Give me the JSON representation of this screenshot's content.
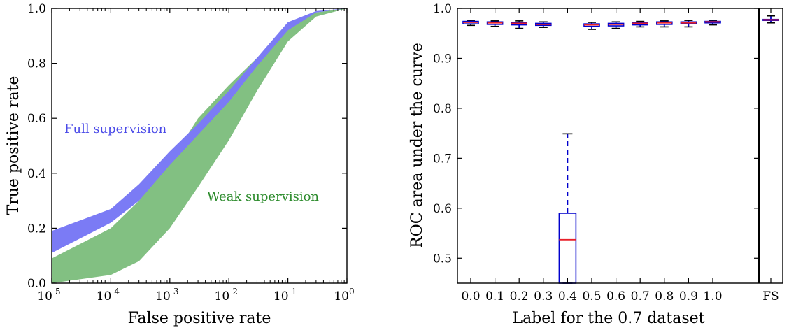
{
  "chart_data": [
    {
      "type": "area",
      "xlabel": "False positive rate",
      "ylabel": "True positive rate",
      "xscale": "log",
      "xlim": [
        1e-05,
        1
      ],
      "ylim": [
        0,
        1
      ],
      "xticks": [
        {
          "base": "10",
          "exp": "-5"
        },
        {
          "base": "10",
          "exp": "-4"
        },
        {
          "base": "10",
          "exp": "-3"
        },
        {
          "base": "10",
          "exp": "-2"
        },
        {
          "base": "10",
          "exp": "-1"
        },
        {
          "base": "10",
          "exp": "0"
        }
      ],
      "yticks": [
        "0.0",
        "0.2",
        "0.4",
        "0.6",
        "0.8",
        "1.0"
      ],
      "annotations": [
        {
          "text": "Full supervision",
          "color": "#4a4ae8"
        },
        {
          "text": "Weak supervision",
          "color": "#2a8a2a"
        }
      ],
      "series": [
        {
          "name": "Full supervision",
          "color": "#7b7bf5",
          "x": [
            1e-05,
            0.0001,
            0.0003,
            0.001,
            0.003,
            0.01,
            0.03,
            0.1,
            0.3,
            1
          ],
          "lower": [
            0.11,
            0.22,
            0.3,
            0.43,
            0.54,
            0.66,
            0.79,
            0.92,
            0.985,
            1.0
          ],
          "upper": [
            0.19,
            0.27,
            0.36,
            0.48,
            0.58,
            0.7,
            0.82,
            0.95,
            0.99,
            1.0
          ]
        },
        {
          "name": "Weak supervision",
          "color": "#82c082",
          "x": [
            1e-05,
            0.0001,
            0.0003,
            0.001,
            0.003,
            0.01,
            0.03,
            0.1,
            0.3,
            1
          ],
          "lower": [
            0.0,
            0.03,
            0.08,
            0.2,
            0.35,
            0.52,
            0.7,
            0.88,
            0.97,
            1.0
          ],
          "upper": [
            0.09,
            0.2,
            0.3,
            0.44,
            0.6,
            0.72,
            0.82,
            0.94,
            0.985,
            1.0
          ]
        }
      ]
    },
    {
      "type": "box",
      "xlabel": "Label for the 0.7 dataset",
      "ylabel": "ROC area under the curve",
      "ylim": [
        0.45,
        1.0
      ],
      "yticks": [
        "0.5",
        "0.6",
        "0.7",
        "0.8",
        "0.9",
        "1.0"
      ],
      "categories": [
        "0.0",
        "0.1",
        "0.2",
        "0.3",
        "0.4",
        "0.5",
        "0.6",
        "0.7",
        "0.8",
        "0.9",
        "1.0",
        "FS"
      ],
      "colors": {
        "box": "#0000cc",
        "median": "#e8202a",
        "whisker": "#0000cc",
        "cap": "#000000"
      },
      "boxes": [
        {
          "label": "0.0",
          "whislo": 0.966,
          "q1": 0.969,
          "med": 0.972,
          "q3": 0.974,
          "whishi": 0.976
        },
        {
          "label": "0.1",
          "whislo": 0.964,
          "q1": 0.968,
          "med": 0.971,
          "q3": 0.973,
          "whishi": 0.975
        },
        {
          "label": "0.2",
          "whislo": 0.96,
          "q1": 0.967,
          "med": 0.97,
          "q3": 0.972,
          "whishi": 0.975
        },
        {
          "label": "0.3",
          "whislo": 0.962,
          "q1": 0.966,
          "med": 0.968,
          "q3": 0.97,
          "whishi": 0.973
        },
        {
          "label": "0.4",
          "whislo": 0.45,
          "q1": 0.45,
          "med": 0.537,
          "q3": 0.59,
          "whishi": 0.749
        },
        {
          "label": "0.5",
          "whislo": 0.958,
          "q1": 0.964,
          "med": 0.967,
          "q3": 0.969,
          "whishi": 0.972
        },
        {
          "label": "0.6",
          "whislo": 0.96,
          "q1": 0.965,
          "med": 0.968,
          "q3": 0.97,
          "whishi": 0.973
        },
        {
          "label": "0.7",
          "whislo": 0.963,
          "q1": 0.967,
          "med": 0.97,
          "q3": 0.972,
          "whishi": 0.974
        },
        {
          "label": "0.8",
          "whislo": 0.963,
          "q1": 0.968,
          "med": 0.971,
          "q3": 0.973,
          "whishi": 0.975
        },
        {
          "label": "0.9",
          "whislo": 0.963,
          "q1": 0.969,
          "med": 0.971,
          "q3": 0.973,
          "whishi": 0.976
        },
        {
          "label": "1.0",
          "whislo": 0.967,
          "q1": 0.971,
          "med": 0.973,
          "q3": 0.974,
          "whishi": 0.976
        },
        {
          "label": "FS",
          "whislo": 0.971,
          "q1": 0.976,
          "med": 0.977,
          "q3": 0.978,
          "whishi": 0.985
        }
      ]
    }
  ]
}
